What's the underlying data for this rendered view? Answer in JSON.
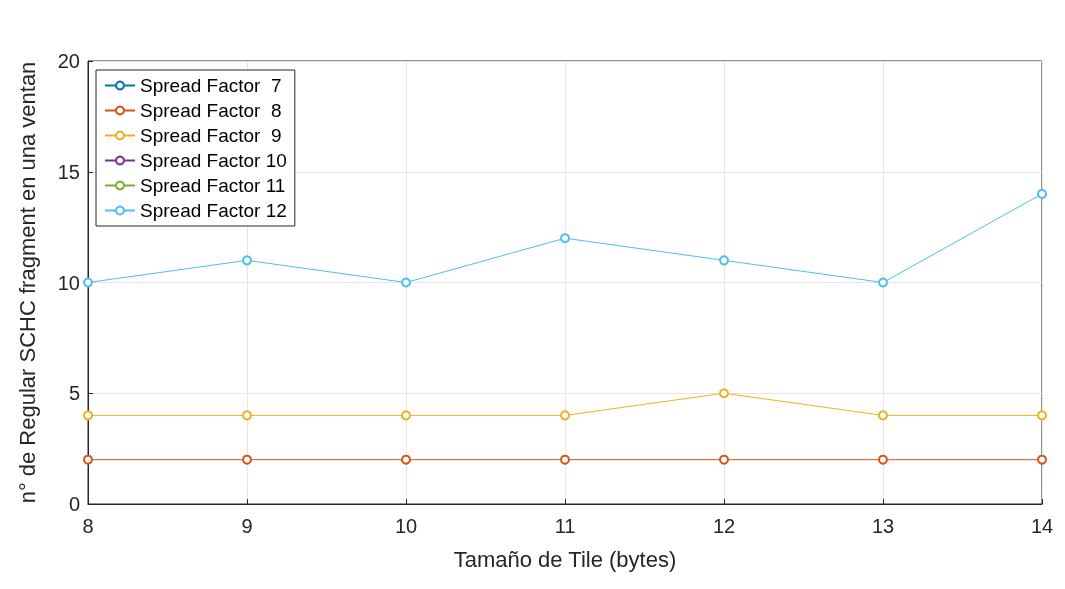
{
  "chart_data": {
    "type": "line",
    "xlabel": "Tamaño de Tile (bytes)",
    "ylabel": "n° de Regular SCHC fragment en una ventan",
    "x": [
      8,
      9,
      10,
      11,
      12,
      13,
      14
    ],
    "series": [
      {
        "name": "Spread Factor  7",
        "color": "#0072bd",
        "values": [
          null,
          null,
          null,
          null,
          null,
          null,
          null
        ]
      },
      {
        "name": "Spread Factor  8",
        "color": "#d95319",
        "values": [
          2,
          2,
          2,
          2,
          2,
          2,
          2
        ]
      },
      {
        "name": "Spread Factor  9",
        "color": "#edb120",
        "values": [
          4,
          4,
          4,
          4,
          5,
          4,
          4
        ]
      },
      {
        "name": "Spread Factor 10",
        "color": "#7e2f8e",
        "values": [
          null,
          null,
          null,
          null,
          null,
          null,
          null
        ]
      },
      {
        "name": "Spread Factor 11",
        "color": "#77ac30",
        "values": [
          null,
          null,
          null,
          null,
          null,
          null,
          null
        ]
      },
      {
        "name": "Spread Factor 12",
        "color": "#4dbeee",
        "values": [
          10,
          11,
          10,
          12,
          11,
          10,
          14
        ]
      }
    ],
    "xlim": [
      8,
      14
    ],
    "xticks": [
      8,
      9,
      10,
      11,
      12,
      13,
      14
    ],
    "ylim": [
      0,
      20
    ],
    "yticks": [
      0,
      5,
      10,
      15,
      20
    ],
    "grid": true,
    "legend": "top left",
    "marker": "circle",
    "line_style": "solid"
  }
}
